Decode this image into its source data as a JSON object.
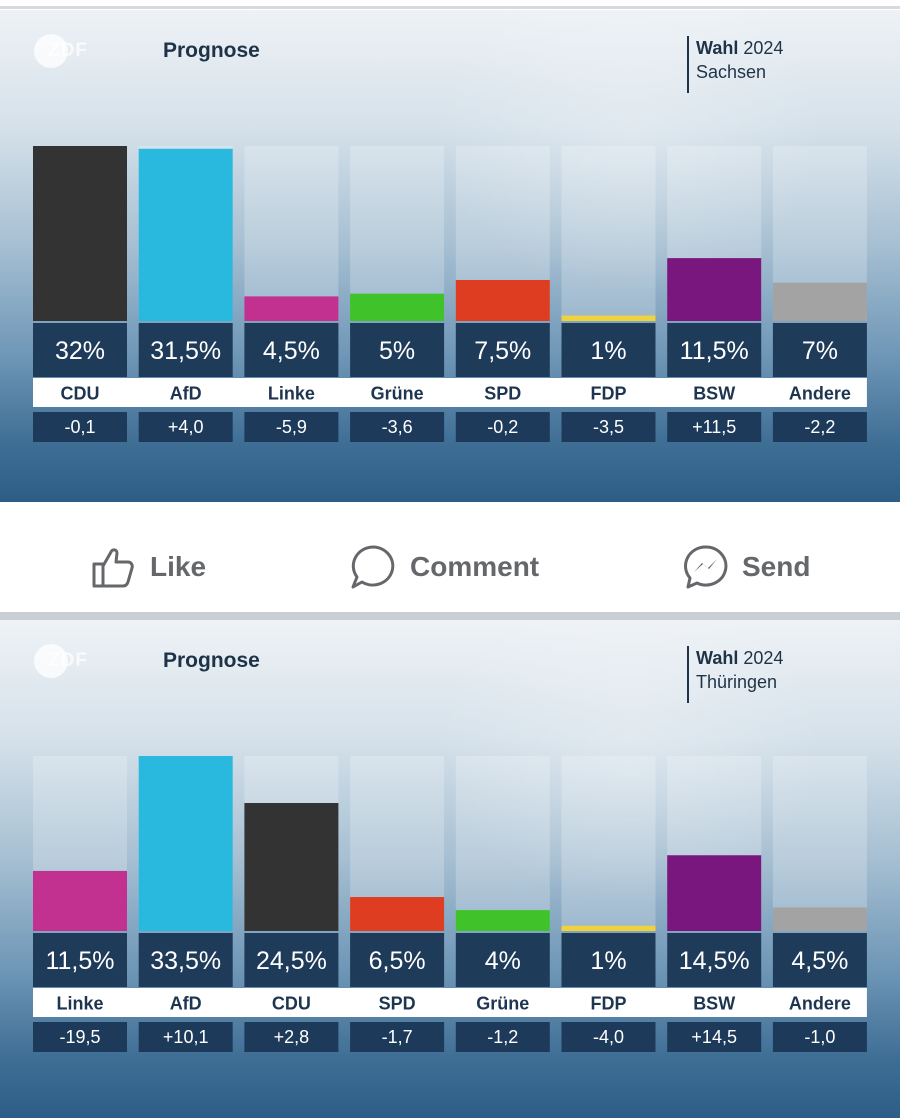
{
  "actions": {
    "like": "Like",
    "comment": "Comment",
    "send": "Send"
  },
  "logo_text": "ZDF",
  "chart_data": [
    {
      "type": "bar",
      "title": "Prognose",
      "badge_bold": "Wahl",
      "badge_year": "2024",
      "region": "Sachsen",
      "ylim": [
        0,
        32
      ],
      "categories": [
        "CDU",
        "AfD",
        "Linke",
        "Grüne",
        "SPD",
        "FDP",
        "BSW",
        "Andere"
      ],
      "values": [
        32,
        31.5,
        4.5,
        5,
        7.5,
        1,
        11.5,
        7
      ],
      "value_labels": [
        "32%",
        "31,5%",
        "4,5%",
        "5%",
        "7,5%",
        "1%",
        "11,5%",
        "7%"
      ],
      "changes": [
        "-0,1",
        "+4,0",
        "-5,9",
        "-3,6",
        "-0,2",
        "-3,5",
        "+11,5",
        "-2,2"
      ],
      "colors": [
        "#333333",
        "#29b8de",
        "#c2318f",
        "#3fc22a",
        "#de3d22",
        "#f0d23c",
        "#7a177f",
        "#a3a3a3"
      ]
    },
    {
      "type": "bar",
      "title": "Prognose",
      "badge_bold": "Wahl",
      "badge_year": "2024",
      "region": "Thüringen",
      "ylim": [
        0,
        33.5
      ],
      "categories": [
        "Linke",
        "AfD",
        "CDU",
        "SPD",
        "Grüne",
        "FDP",
        "BSW",
        "Andere"
      ],
      "values": [
        11.5,
        33.5,
        24.5,
        6.5,
        4,
        1,
        14.5,
        4.5
      ],
      "value_labels": [
        "11,5%",
        "33,5%",
        "24,5%",
        "6,5%",
        "4%",
        "1%",
        "14,5%",
        "4,5%"
      ],
      "changes": [
        "-19,5",
        "+10,1",
        "+2,8",
        "-1,7",
        "-1,2",
        "-4,0",
        "+14,5",
        "-1,0"
      ],
      "colors": [
        "#c2318f",
        "#29b8de",
        "#333333",
        "#de3d22",
        "#3fc22a",
        "#f0d23c",
        "#7a177f",
        "#a3a3a3"
      ]
    }
  ]
}
